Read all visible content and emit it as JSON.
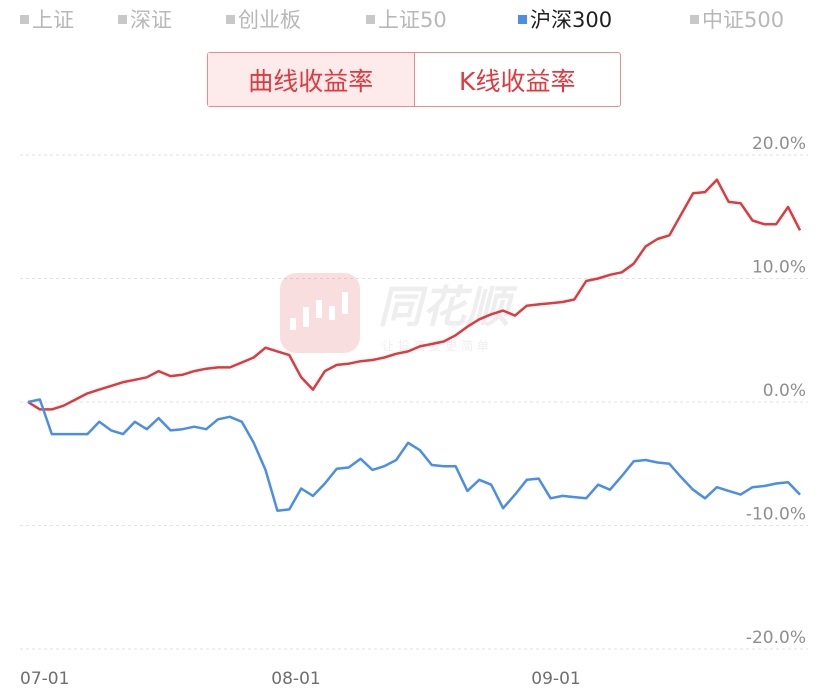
{
  "legend": [
    {
      "label": "上证",
      "active": false
    },
    {
      "label": "深证",
      "active": false
    },
    {
      "label": "创业板",
      "active": false
    },
    {
      "label": "上证50",
      "active": false
    },
    {
      "label": "沪深300",
      "active": true
    },
    {
      "label": "中证500",
      "active": false
    }
  ],
  "toggle": {
    "curve_label": "曲线收益率",
    "k_label": "K线收益率",
    "selected": "curve"
  },
  "watermark": {
    "text": "同花顺",
    "subtext": "让 投 资 变 更 简 单"
  },
  "colors": {
    "strategy": "#e0393e",
    "benchmark": "#4a8ee8",
    "grid": "#e2e2e2"
  },
  "chart_data": {
    "type": "line",
    "x_labels": [
      "07-01",
      "08-01",
      "09-01"
    ],
    "y_ticks": [
      "20.0%",
      "10.0%",
      "0.0%",
      "-10.0%",
      "-20.0%"
    ],
    "ylim": [
      -20,
      20
    ],
    "grid": true,
    "n_points": 66,
    "series": [
      {
        "color": "#e0393e",
        "values": [
          0.0,
          -0.6,
          -0.6,
          -0.3,
          0.2,
          0.7,
          1.0,
          1.3,
          1.6,
          1.8,
          2.0,
          2.5,
          2.1,
          2.2,
          2.5,
          2.7,
          2.8,
          2.8,
          3.2,
          3.6,
          4.4,
          4.1,
          3.8,
          2.0,
          1.0,
          2.5,
          3.0,
          3.1,
          3.3,
          3.4,
          3.6,
          3.9,
          4.1,
          4.5,
          4.7,
          4.9,
          5.4,
          6.1,
          6.7,
          7.1,
          7.4,
          7.0,
          7.8,
          7.9,
          8.0,
          8.1,
          8.3,
          9.8,
          10.0,
          10.3,
          10.5,
          11.2,
          12.6,
          13.2,
          13.5,
          15.2,
          16.9,
          17.0,
          18.0,
          16.2,
          16.1,
          14.7,
          14.4,
          14.4,
          15.8,
          13.9
        ]
      },
      {
        "color": "#4a8ee8",
        "values": [
          0.0,
          0.2,
          -2.6,
          -2.6,
          -2.6,
          -2.6,
          -1.6,
          -2.3,
          -2.6,
          -1.6,
          -2.2,
          -1.3,
          -2.3,
          -2.2,
          -2.0,
          -2.2,
          -1.4,
          -1.2,
          -1.6,
          -3.3,
          -5.5,
          -8.8,
          -8.7,
          -7.0,
          -7.6,
          -6.6,
          -5.4,
          -5.3,
          -4.6,
          -5.5,
          -5.2,
          -4.7,
          -3.3,
          -3.9,
          -5.1,
          -5.2,
          -5.2,
          -7.2,
          -6.3,
          -6.7,
          -8.6,
          -7.5,
          -6.3,
          -6.2,
          -7.8,
          -7.6,
          -7.7,
          -7.8,
          -6.7,
          -7.1,
          -6.0,
          -4.8,
          -4.7,
          -4.9,
          -5.0,
          -6.1,
          -7.1,
          -7.8,
          -6.9,
          -7.2,
          -7.5,
          -6.9,
          -6.8,
          -6.6,
          -6.5,
          -7.5
        ]
      }
    ]
  }
}
